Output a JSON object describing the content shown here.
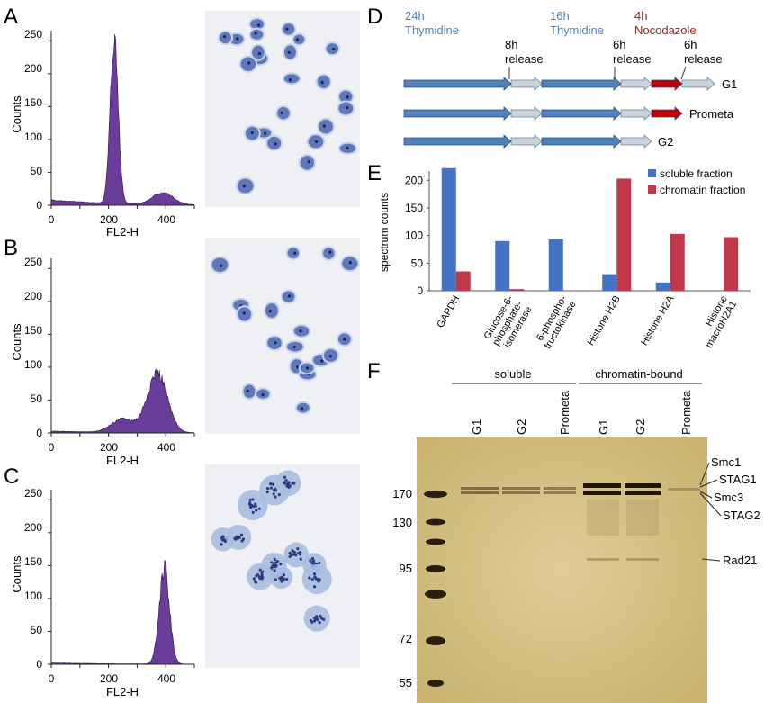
{
  "panel_letters": {
    "A": "A",
    "B": "B",
    "C": "C",
    "D": "D",
    "E": "E",
    "F": "F"
  },
  "colors": {
    "histogram": "#6a3d9a",
    "thymidine": "#4f81bd",
    "nocodazole": "#c00000",
    "soluble": "#4472c4",
    "chromatin": "#c0394b",
    "gel_bg": "#d8c48a",
    "cell_stain": "#3b59a8"
  },
  "histograms": [
    {
      "panel": "A",
      "ylabel": "Counts",
      "xlabel": "FL2-H",
      "yticks": [
        "0",
        "50",
        "100",
        "150",
        "200",
        "250"
      ],
      "xticks": [
        "0",
        "200",
        "400"
      ],
      "chart_data": {
        "type": "histogram",
        "xlim": [
          0,
          500
        ],
        "ylim": [
          0,
          260
        ],
        "peaks": [
          {
            "center": 220,
            "height": 250,
            "width": 14
          },
          {
            "center": 390,
            "height": 18,
            "width": 35
          }
        ],
        "baseline": 8
      }
    },
    {
      "panel": "B",
      "ylabel": "Counts",
      "xlabel": "FL2-H",
      "yticks": [
        "0",
        "50",
        "100",
        "150",
        "200",
        "250"
      ],
      "xticks": [
        "0",
        "200",
        "400"
      ],
      "chart_data": {
        "type": "histogram",
        "xlim": [
          0,
          500
        ],
        "ylim": [
          0,
          260
        ],
        "peaks": [
          {
            "center": 370,
            "height": 90,
            "width": 35
          },
          {
            "center": 250,
            "height": 20,
            "width": 40
          }
        ],
        "baseline": 3
      }
    },
    {
      "panel": "C",
      "ylabel": "Counts",
      "xlabel": "FL2-H",
      "yticks": [
        "0",
        "50",
        "100",
        "150",
        "200",
        "250"
      ],
      "xticks": [
        "0",
        "200",
        "400"
      ],
      "chart_data": {
        "type": "histogram",
        "xlim": [
          0,
          500
        ],
        "ylim": [
          0,
          260
        ],
        "peaks": [
          {
            "center": 395,
            "height": 145,
            "width": 18
          }
        ],
        "baseline": 2
      }
    }
  ],
  "protocol": {
    "step1": {
      "l1": "24h",
      "l2": "Thymidine"
    },
    "step2": {
      "l1": "8h",
      "l2": "release"
    },
    "step3": {
      "l1": "16h",
      "l2": "Thymidine"
    },
    "step4": {
      "l1": "6h",
      "l2": "release"
    },
    "step5": {
      "l1": "4h",
      "l2": "Nocodazole"
    },
    "step6": {
      "l1": "6h",
      "l2": "release"
    },
    "rows": [
      "G1",
      "Prometa",
      "G2"
    ]
  },
  "chart_data": {
    "type": "bar",
    "ylabel": "spectrum counts",
    "categories": [
      "GAPDH",
      "Glucose-6-phosphate-isomerase",
      "6-phospho-fructokinase",
      "Histone H2B",
      "Histone H2A",
      "Histone macroH2A1"
    ],
    "category_lines": [
      [
        "GAPDH"
      ],
      [
        "Glucose-6-",
        "phosphate-",
        "isomerase"
      ],
      [
        "6-phospho-",
        "fructokinase"
      ],
      [
        "Histone H2B"
      ],
      [
        "Histone H2A"
      ],
      [
        "Histone",
        "macroH2A1"
      ]
    ],
    "series": [
      {
        "name": "soluble fraction",
        "values": [
          222,
          90,
          93,
          30,
          15,
          0
        ]
      },
      {
        "name": "chromatin fraction",
        "values": [
          35,
          3,
          0,
          203,
          103,
          97
        ]
      }
    ],
    "ylim": [
      0,
      220
    ],
    "yticks": [
      "0",
      "50",
      "100",
      "150",
      "200"
    ]
  },
  "gel": {
    "group_soluble": "soluble",
    "group_chromatin": "chromatin-bound",
    "lanes": [
      "G1",
      "G2",
      "Prometa",
      "G1",
      "G2",
      "Prometa"
    ],
    "markers": [
      "170",
      "130",
      "95",
      "72",
      "55"
    ],
    "proteins": [
      "Smc1",
      "STAG1",
      "Smc3",
      "STAG2",
      "Rad21"
    ]
  }
}
